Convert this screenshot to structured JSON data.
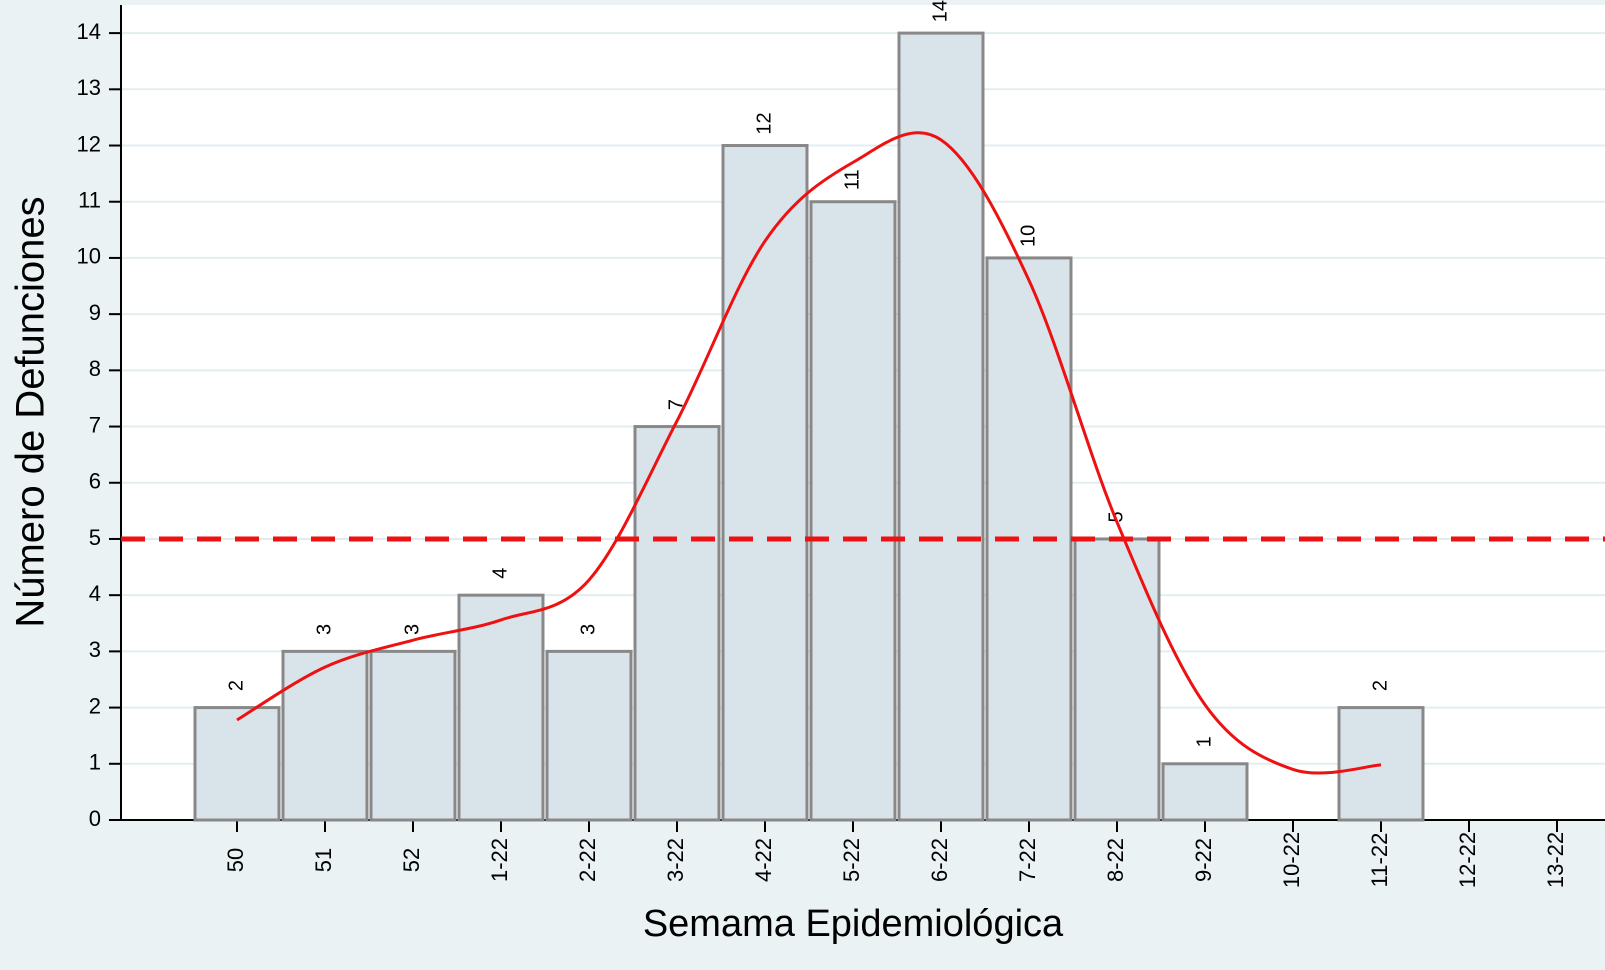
{
  "chart_data": {
    "type": "bar",
    "x_label": "Semama Epidemiológica",
    "y_label": "Número de Defunciones",
    "categories": [
      "50",
      "51",
      "52",
      "1-22",
      "2-22",
      "3-22",
      "4-22",
      "5-22",
      "6-22",
      "7-22",
      "8-22",
      "9-22",
      "10-22",
      "11-22",
      "12-22",
      "13-22"
    ],
    "series": [
      {
        "color": "#d9e4ea",
        "values": [
          2,
          3,
          3,
          4,
          3,
          7,
          12,
          11,
          14,
          10,
          5,
          1,
          null,
          2,
          null,
          null
        ]
      },
      {
        "type": "line",
        "color": "#ee1111",
        "values": [
          1.78,
          2.72,
          3.2,
          3.56,
          4.27,
          7.1,
          10.3,
          11.7,
          12.1,
          9.6,
          5.3,
          2.05,
          0.9,
          0.98,
          null,
          null
        ]
      }
    ],
    "reference_line": {
      "value": 5,
      "color": "#ee1111"
    },
    "ylim": [
      0,
      14.5
    ],
    "yticks": [
      0,
      1,
      2,
      3,
      4,
      5,
      6,
      7,
      8,
      9,
      10,
      11,
      12,
      13,
      14
    ],
    "grid": true
  }
}
